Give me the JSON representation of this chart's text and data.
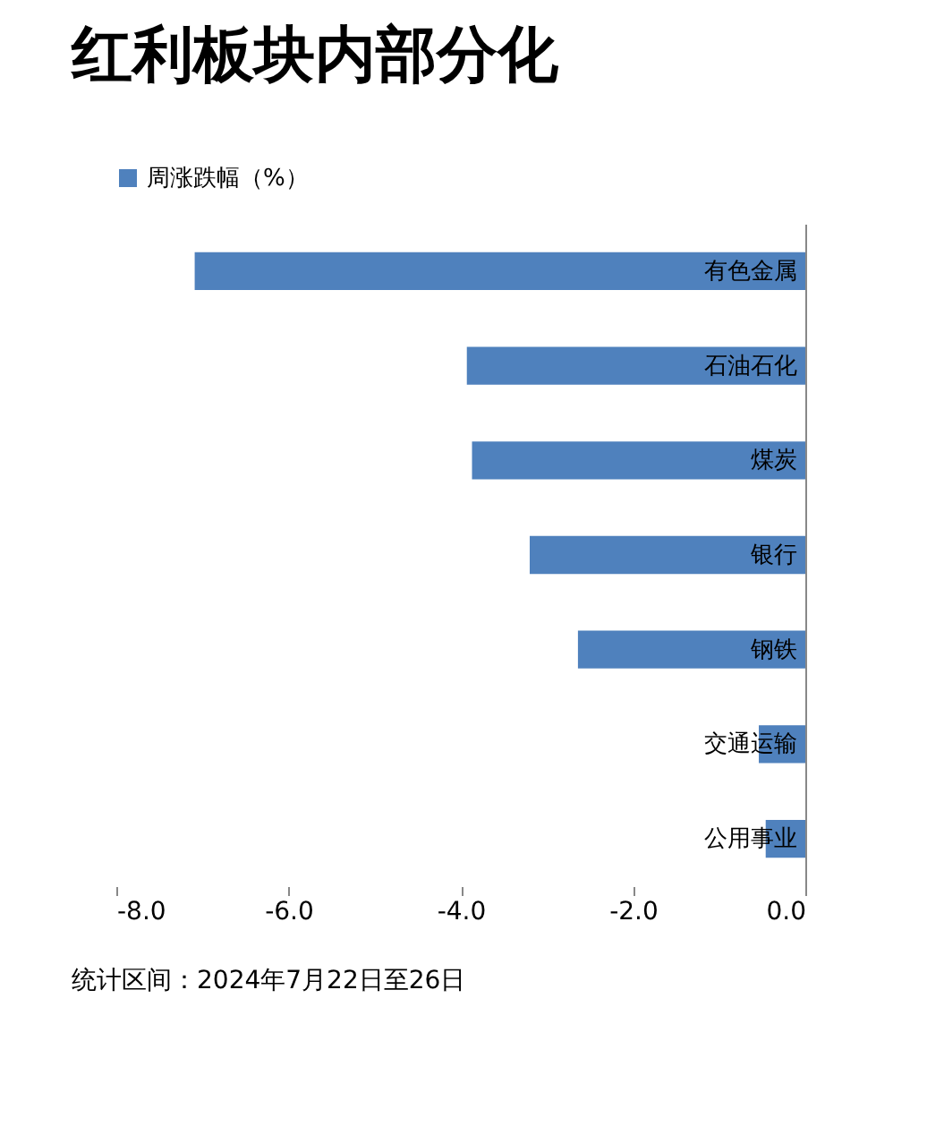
{
  "chart_data": {
    "type": "bar",
    "orientation": "horizontal",
    "title": "红利板块内部分化",
    "categories": [
      "有色金属",
      "石油石化",
      "煤炭",
      "银行",
      "钢铁",
      "交通运输",
      "公用事业"
    ],
    "series": [
      {
        "name": "周涨跌幅（%）",
        "color": "#4f81bd",
        "values": [
          -7.09,
          -3.93,
          -3.87,
          -3.2,
          -2.64,
          -0.54,
          -0.46
        ]
      }
    ],
    "xlim": [
      -8,
      0
    ],
    "xticks": [
      {
        "value": -8,
        "label": "-8.0"
      },
      {
        "value": -6,
        "label": "-6.0"
      },
      {
        "value": -4,
        "label": "-4.0"
      },
      {
        "value": -2,
        "label": "-2.0"
      },
      {
        "value": 0,
        "label": "0.0"
      }
    ],
    "grid": false,
    "legend": "top",
    "annotations": [
      "统计区间：2024年7月22日至26日"
    ]
  }
}
